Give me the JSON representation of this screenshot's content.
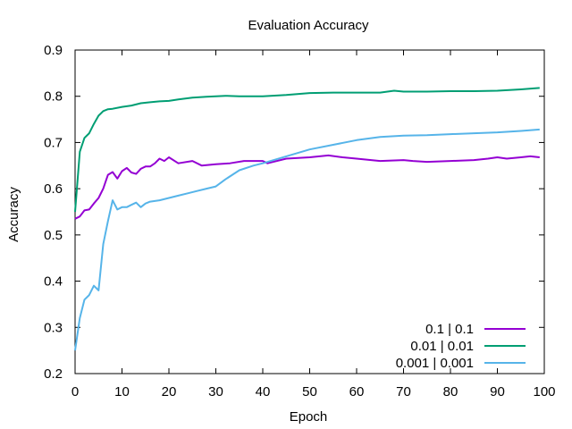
{
  "chart_data": {
    "type": "line",
    "title": "Evaluation Accuracy",
    "xlabel": "Epoch",
    "ylabel": "Accuracy",
    "xlim": [
      0,
      100
    ],
    "ylim": [
      0.2,
      0.9
    ],
    "xticks": [
      0,
      10,
      20,
      30,
      40,
      50,
      60,
      70,
      80,
      90,
      100
    ],
    "yticks": [
      0.2,
      0.3,
      0.4,
      0.5,
      0.6,
      0.7,
      0.8,
      0.9
    ],
    "grid": false,
    "legend_position": "bottom-right",
    "series": [
      {
        "name": "0.1 | 0.1",
        "color": "#9400d3",
        "x": [
          0,
          1,
          2,
          3,
          4,
          5,
          6,
          7,
          8,
          9,
          10,
          11,
          12,
          13,
          14,
          15,
          16,
          17,
          18,
          19,
          20,
          22,
          25,
          27,
          30,
          33,
          36,
          40,
          41,
          45,
          50,
          54,
          57,
          60,
          65,
          70,
          72,
          75,
          80,
          85,
          88,
          90,
          92,
          95,
          97,
          99
        ],
        "y": [
          0.535,
          0.54,
          0.553,
          0.555,
          0.568,
          0.58,
          0.6,
          0.63,
          0.636,
          0.622,
          0.638,
          0.645,
          0.635,
          0.632,
          0.643,
          0.648,
          0.648,
          0.655,
          0.665,
          0.66,
          0.668,
          0.655,
          0.66,
          0.65,
          0.653,
          0.655,
          0.66,
          0.66,
          0.655,
          0.665,
          0.668,
          0.672,
          0.668,
          0.665,
          0.66,
          0.662,
          0.66,
          0.658,
          0.66,
          0.662,
          0.665,
          0.668,
          0.665,
          0.668,
          0.67,
          0.668
        ]
      },
      {
        "name": "0.01 | 0.01",
        "color": "#009e73",
        "x": [
          0,
          1,
          2,
          3,
          4,
          5,
          6,
          7,
          8,
          10,
          12,
          14,
          16,
          18,
          20,
          22,
          25,
          28,
          32,
          35,
          40,
          45,
          50,
          55,
          60,
          65,
          68,
          70,
          75,
          80,
          85,
          90,
          95,
          99
        ],
        "y": [
          0.55,
          0.68,
          0.71,
          0.72,
          0.74,
          0.758,
          0.768,
          0.772,
          0.773,
          0.777,
          0.78,
          0.785,
          0.787,
          0.789,
          0.79,
          0.793,
          0.797,
          0.799,
          0.801,
          0.8,
          0.8,
          0.803,
          0.807,
          0.808,
          0.808,
          0.808,
          0.812,
          0.81,
          0.81,
          0.811,
          0.811,
          0.812,
          0.815,
          0.818
        ]
      },
      {
        "name": "0.001 | 0.001",
        "color": "#56b4e9",
        "x": [
          0,
          1,
          2,
          3,
          4,
          5,
          6,
          7,
          8,
          9,
          10,
          11,
          12,
          13,
          14,
          15,
          16,
          18,
          20,
          22,
          24,
          26,
          28,
          30,
          32,
          35,
          38,
          40,
          45,
          50,
          55,
          60,
          65,
          70,
          75,
          80,
          85,
          90,
          95,
          99
        ],
        "y": [
          0.25,
          0.32,
          0.36,
          0.37,
          0.39,
          0.38,
          0.48,
          0.53,
          0.575,
          0.555,
          0.56,
          0.56,
          0.565,
          0.57,
          0.56,
          0.568,
          0.572,
          0.575,
          0.58,
          0.585,
          0.59,
          0.595,
          0.6,
          0.605,
          0.62,
          0.64,
          0.65,
          0.655,
          0.67,
          0.685,
          0.695,
          0.705,
          0.712,
          0.715,
          0.716,
          0.718,
          0.72,
          0.722,
          0.725,
          0.728
        ]
      }
    ]
  }
}
